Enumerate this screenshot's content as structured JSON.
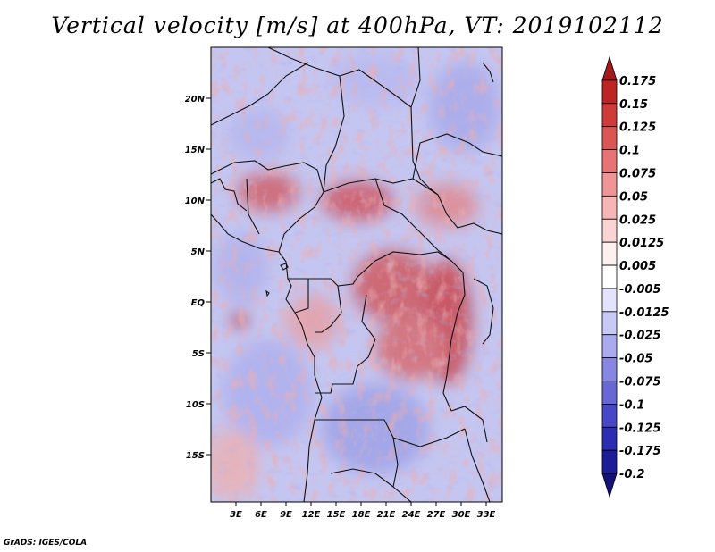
{
  "title": "Vertical velocity [m/s] at 400hPa, VT: 2019102112",
  "credit": "GrADS: IGES/COLA",
  "map": {
    "lat_labels": [
      "20N",
      "15N",
      "10N",
      "5N",
      "EQ",
      "5S",
      "10S",
      "15S"
    ],
    "lon_labels": [
      "3E",
      "6E",
      "9E",
      "12E",
      "15E",
      "18E",
      "21E",
      "24E",
      "27E",
      "30E",
      "33E"
    ],
    "lat_range": [
      -20,
      25
    ],
    "lon_range": [
      0,
      35
    ]
  },
  "colorbar": {
    "labels": [
      "0.175",
      "0.15",
      "0.125",
      "0.1",
      "0.075",
      "0.05",
      "0.025",
      "0.0125",
      "0.005",
      "-0.005",
      "-0.0125",
      "-0.025",
      "-0.05",
      "-0.075",
      "-0.1",
      "-0.125",
      "-0.175",
      "-0.2"
    ],
    "colors": [
      "#a31a1a",
      "#bd2424",
      "#cf3b3b",
      "#dc5555",
      "#e67474",
      "#ef9595",
      "#f6b6b6",
      "#fbd3d3",
      "#fff0f0",
      "#ffffff",
      "#e3e3fb",
      "#c9c9f5",
      "#aaaaee",
      "#8787e3",
      "#6767d6",
      "#4848c6",
      "#2d2db4",
      "#1d1d98",
      "#16107a"
    ]
  }
}
